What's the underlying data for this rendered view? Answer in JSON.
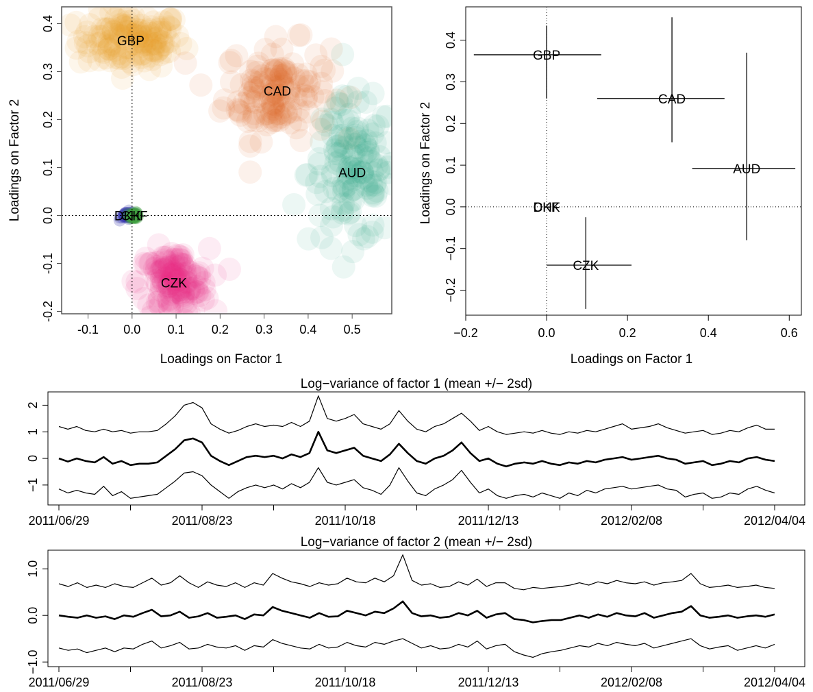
{
  "chart_data": [
    {
      "type": "scatter",
      "xlabel": "Loadings on Factor 1",
      "ylabel": "Loadings on Factor 2",
      "xlim": [
        -0.16,
        0.59
      ],
      "ylim": [
        -0.205,
        0.435
      ],
      "xticks": [
        -0.1,
        0.0,
        0.1,
        0.2,
        0.3,
        0.4,
        0.5
      ],
      "xtick_labels": [
        "-0.1",
        "0.0",
        "0.1",
        "0.2",
        "0.3",
        "0.4",
        "0.5"
      ],
      "yticks": [
        -0.2,
        -0.1,
        0.0,
        0.1,
        0.2,
        0.3,
        0.4
      ],
      "ytick_labels": [
        "-0.2",
        "-0.1",
        "0.0",
        "0.1",
        "0.2",
        "0.3",
        "0.4"
      ],
      "reference_lines": {
        "x": 0,
        "y": 0
      },
      "series": [
        {
          "name": "GBP",
          "color": "#E6A020",
          "center": [
            -0.003,
            0.365
          ],
          "spread": [
            0.06,
            0.03
          ]
        },
        {
          "name": "CAD",
          "color": "#D95F1E",
          "center": [
            0.33,
            0.26
          ],
          "spread": [
            0.06,
            0.05
          ]
        },
        {
          "name": "AUD",
          "color": "#2EAA80",
          "center": [
            0.5,
            0.09
          ],
          "spread": [
            0.05,
            0.075
          ]
        },
        {
          "name": "DKK",
          "color": "#3A3AB0",
          "center": [
            -0.01,
            0.0
          ],
          "spread": [
            0.008,
            0.004
          ]
        },
        {
          "name": "CHF",
          "color": "#3F9E3F",
          "center": [
            0.005,
            0.0
          ],
          "spread": [
            0.005,
            0.003
          ]
        },
        {
          "name": "CZK",
          "color": "#E62A8A",
          "center": [
            0.095,
            -0.14
          ],
          "spread": [
            0.04,
            0.035
          ]
        }
      ]
    },
    {
      "type": "scatter",
      "xlabel": "Loadings on Factor 1",
      "ylabel": "Loadings on Factor 2",
      "xlim": [
        -0.2,
        0.63
      ],
      "ylim": [
        -0.26,
        0.48
      ],
      "xticks": [
        -0.2,
        0.0,
        0.2,
        0.4,
        0.6
      ],
      "xtick_labels": [
        "−0.2",
        "0.0",
        "0.2",
        "0.4",
        "0.6"
      ],
      "yticks": [
        -0.2,
        -0.1,
        0.0,
        0.1,
        0.2,
        0.3,
        0.4
      ],
      "ytick_labels": [
        "−0.2",
        "−0.1",
        "0.0",
        "0.1",
        "0.2",
        "0.3",
        "0.4"
      ],
      "reference_lines": {
        "x": 0,
        "y": 0
      },
      "points": [
        {
          "label": "GBP",
          "x": 0.0,
          "y": 0.365,
          "x_lo": -0.18,
          "x_hi": 0.135,
          "y_lo": 0.26,
          "y_hi": 0.435
        },
        {
          "label": "CAD",
          "x": 0.31,
          "y": 0.26,
          "x_lo": 0.125,
          "x_hi": 0.44,
          "y_lo": 0.155,
          "y_hi": 0.455
        },
        {
          "label": "AUD",
          "x": 0.495,
          "y": 0.092,
          "x_lo": 0.36,
          "x_hi": 0.615,
          "y_lo": -0.08,
          "y_hi": 0.37
        },
        {
          "label": "DKK",
          "x": 0.0,
          "y": 0.0,
          "x_lo": 0.0,
          "x_hi": 0.0,
          "y_lo": 0.0,
          "y_hi": 0.0
        },
        {
          "label": "CHF",
          "x": 0.0,
          "y": 0.0,
          "x_lo": 0.0,
          "x_hi": 0.0,
          "y_lo": 0.0,
          "y_hi": 0.0
        },
        {
          "label": "CZK",
          "x": 0.097,
          "y": -0.14,
          "x_lo": 0.0,
          "x_hi": 0.21,
          "y_lo": -0.245,
          "y_hi": -0.025
        }
      ]
    },
    {
      "type": "line",
      "title": "Log−variance of factor 1 (mean +/− 2sd)",
      "x_labels": [
        "2011/06/29",
        "2011/08/23",
        "2011/10/18",
        "2011/12/13",
        "2012/02/08",
        "2012/04/04"
      ],
      "ylim": [
        -1.75,
        2.5
      ],
      "yticks": [
        -1,
        0,
        1,
        2
      ],
      "ytick_labels": [
        "−1",
        "0",
        "1",
        "2"
      ],
      "series": [
        {
          "name": "mean",
          "values": [
            0.0,
            -0.12,
            0.0,
            -0.1,
            -0.15,
            0.05,
            -0.2,
            -0.1,
            -0.25,
            -0.2,
            -0.2,
            -0.15,
            0.1,
            0.35,
            0.68,
            0.75,
            0.6,
            0.1,
            -0.1,
            -0.25,
            -0.1,
            0.05,
            0.1,
            0.05,
            0.1,
            0.0,
            0.15,
            0.05,
            0.2,
            1.0,
            0.3,
            0.2,
            0.3,
            0.4,
            0.1,
            0.0,
            -0.1,
            0.15,
            0.55,
            0.2,
            -0.1,
            -0.2,
            0.0,
            0.1,
            0.3,
            0.6,
            0.2,
            -0.1,
            0.0,
            -0.2,
            -0.3,
            -0.2,
            -0.15,
            -0.2,
            -0.1,
            -0.2,
            -0.25,
            -0.15,
            -0.2,
            -0.1,
            -0.15,
            -0.05,
            0.0,
            0.05,
            -0.05,
            0.0,
            0.05,
            0.1,
            0.0,
            -0.05,
            -0.2,
            -0.15,
            -0.1,
            -0.25,
            -0.2,
            -0.1,
            -0.15,
            0.0,
            0.05,
            -0.05,
            -0.1
          ]
        },
        {
          "name": "upper",
          "values": [
            1.2,
            1.1,
            1.2,
            1.05,
            1.0,
            1.1,
            1.0,
            1.05,
            0.95,
            1.0,
            1.0,
            1.05,
            1.3,
            1.6,
            2.0,
            2.1,
            1.9,
            1.3,
            1.1,
            0.95,
            1.05,
            1.2,
            1.3,
            1.2,
            1.25,
            1.2,
            1.35,
            1.2,
            1.4,
            2.35,
            1.5,
            1.4,
            1.5,
            1.65,
            1.3,
            1.2,
            1.1,
            1.3,
            1.8,
            1.4,
            1.1,
            1.0,
            1.2,
            1.3,
            1.5,
            1.7,
            1.4,
            1.05,
            1.2,
            1.0,
            0.9,
            0.95,
            1.0,
            0.95,
            1.05,
            0.95,
            0.9,
            1.0,
            0.95,
            1.05,
            1.0,
            1.1,
            1.2,
            1.3,
            1.1,
            1.15,
            1.2,
            1.3,
            1.15,
            1.05,
            0.95,
            1.0,
            1.05,
            0.9,
            0.95,
            1.05,
            1.0,
            1.15,
            1.25,
            1.1,
            1.1
          ]
        },
        {
          "name": "lower",
          "values": [
            -1.15,
            -1.3,
            -1.2,
            -1.3,
            -1.35,
            -1.05,
            -1.4,
            -1.25,
            -1.5,
            -1.45,
            -1.4,
            -1.35,
            -1.1,
            -0.85,
            -0.55,
            -0.5,
            -0.65,
            -1.0,
            -1.25,
            -1.5,
            -1.25,
            -1.1,
            -1.0,
            -1.1,
            -1.0,
            -1.15,
            -0.95,
            -1.1,
            -0.9,
            -0.35,
            -0.9,
            -1.0,
            -0.9,
            -0.8,
            -1.1,
            -1.2,
            -1.35,
            -1.0,
            -0.35,
            -0.85,
            -1.3,
            -1.4,
            -1.15,
            -1.0,
            -0.8,
            -0.45,
            -0.9,
            -1.3,
            -1.15,
            -1.4,
            -1.5,
            -1.4,
            -1.35,
            -1.45,
            -1.3,
            -1.4,
            -1.5,
            -1.3,
            -1.4,
            -1.2,
            -1.3,
            -1.15,
            -1.1,
            -1.05,
            -1.15,
            -1.1,
            -1.05,
            -1.0,
            -1.15,
            -1.2,
            -1.45,
            -1.35,
            -1.3,
            -1.5,
            -1.45,
            -1.3,
            -1.35,
            -1.15,
            -1.05,
            -1.2,
            -1.3
          ]
        }
      ]
    },
    {
      "type": "line",
      "title": "Log−variance of factor 2 (mean +/− 2sd)",
      "x_labels": [
        "2011/06/29",
        "2011/08/23",
        "2011/10/18",
        "2011/12/13",
        "2012/02/08",
        "2012/04/04"
      ],
      "ylim": [
        -1.1,
        1.4
      ],
      "yticks": [
        -1.0,
        0.0,
        1.0
      ],
      "ytick_labels": [
        "−1.0",
        "0.0",
        "1.0"
      ],
      "series": [
        {
          "name": "mean",
          "values": [
            0.0,
            -0.03,
            -0.05,
            0.0,
            -0.05,
            -0.02,
            -0.08,
            0.0,
            -0.03,
            0.05,
            0.12,
            -0.02,
            0.0,
            0.08,
            -0.05,
            -0.02,
            0.05,
            -0.05,
            -0.03,
            0.0,
            -0.08,
            0.02,
            0.0,
            0.18,
            0.1,
            0.05,
            0.0,
            -0.05,
            0.05,
            -0.03,
            -0.02,
            0.1,
            0.05,
            0.0,
            0.08,
            0.05,
            0.15,
            0.3,
            0.05,
            -0.02,
            0.0,
            -0.05,
            -0.03,
            0.05,
            0.0,
            0.1,
            -0.05,
            0.02,
            0.05,
            -0.08,
            -0.1,
            -0.15,
            -0.12,
            -0.1,
            -0.1,
            -0.05,
            0.0,
            -0.05,
            0.02,
            -0.03,
            0.05,
            0.0,
            -0.02,
            0.05,
            -0.05,
            0.0,
            0.05,
            0.08,
            0.2,
            0.0,
            -0.05,
            -0.03,
            0.0,
            -0.05,
            -0.02,
            0.0,
            -0.03,
            0.02
          ]
        },
        {
          "name": "upper",
          "values": [
            0.68,
            0.62,
            0.7,
            0.6,
            0.65,
            0.6,
            0.68,
            0.62,
            0.6,
            0.7,
            0.8,
            0.65,
            0.7,
            0.85,
            0.7,
            0.6,
            0.72,
            0.65,
            0.62,
            0.7,
            0.6,
            0.7,
            0.65,
            0.9,
            0.8,
            0.72,
            0.68,
            0.62,
            0.7,
            0.65,
            0.68,
            0.8,
            0.72,
            0.7,
            0.8,
            0.72,
            0.85,
            1.3,
            0.75,
            0.65,
            0.68,
            0.6,
            0.62,
            0.72,
            0.65,
            0.78,
            0.62,
            0.7,
            0.7,
            0.58,
            0.55,
            0.6,
            0.58,
            0.6,
            0.62,
            0.65,
            0.7,
            0.65,
            0.72,
            0.68,
            0.75,
            0.7,
            0.68,
            0.72,
            0.65,
            0.7,
            0.72,
            0.75,
            0.9,
            0.68,
            0.6,
            0.62,
            0.65,
            0.6,
            0.62,
            0.65,
            0.6,
            0.58
          ]
        },
        {
          "name": "lower",
          "values": [
            -0.7,
            -0.75,
            -0.72,
            -0.8,
            -0.75,
            -0.7,
            -0.78,
            -0.7,
            -0.72,
            -0.62,
            -0.55,
            -0.7,
            -0.65,
            -0.58,
            -0.72,
            -0.7,
            -0.62,
            -0.68,
            -0.7,
            -0.65,
            -0.75,
            -0.65,
            -0.68,
            -0.52,
            -0.6,
            -0.65,
            -0.7,
            -0.72,
            -0.62,
            -0.7,
            -0.68,
            -0.58,
            -0.65,
            -0.68,
            -0.58,
            -0.62,
            -0.55,
            -0.5,
            -0.6,
            -0.7,
            -0.65,
            -0.72,
            -0.7,
            -0.62,
            -0.68,
            -0.55,
            -0.72,
            -0.65,
            -0.62,
            -0.78,
            -0.85,
            -0.9,
            -0.82,
            -0.78,
            -0.75,
            -0.7,
            -0.65,
            -0.68,
            -0.6,
            -0.65,
            -0.58,
            -0.62,
            -0.65,
            -0.6,
            -0.7,
            -0.65,
            -0.6,
            -0.55,
            -0.5,
            -0.65,
            -0.72,
            -0.68,
            -0.65,
            -0.75,
            -0.7,
            -0.65,
            -0.7,
            -0.62
          ]
        }
      ]
    }
  ]
}
